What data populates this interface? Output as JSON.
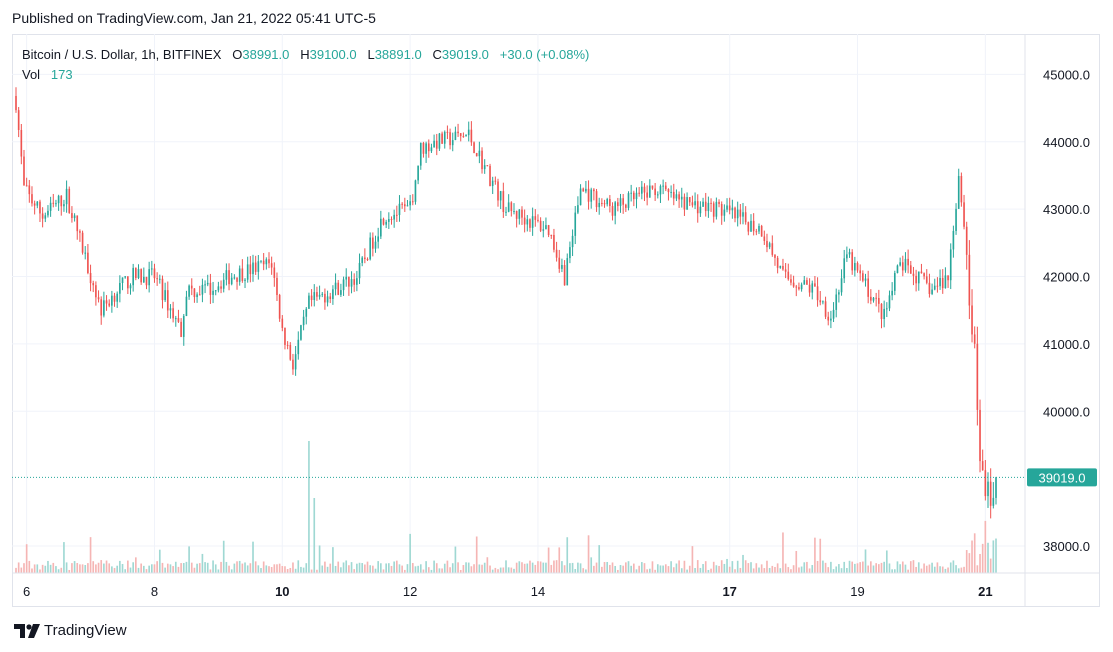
{
  "published": "Published on TradingView.com, Jan 21, 2022 05:41 UTC-5",
  "legend": {
    "symbol": "Bitcoin / U.S. Dollar, 1h, BITFINEX",
    "o_label": "O",
    "o_value": "38991.0",
    "h_label": "H",
    "h_value": "39100.0",
    "l_label": "L",
    "l_value": "38891.0",
    "c_label": "C",
    "c_value": "39019.0",
    "change": "+30.0 (+0.08%)",
    "vol_label": "Vol",
    "vol_value": "173"
  },
  "logo_text": "TradingView",
  "colors": {
    "up": "#26a69a",
    "down": "#ef5350",
    "vol_up": "#9fd8d3",
    "vol_down": "#f5b5b4",
    "grid": "#f0f3fa"
  },
  "chart_data": {
    "type": "candlestick",
    "y_ticks": [
      "45000.0",
      "44000.0",
      "43000.0",
      "42000.0",
      "41000.0",
      "40000.0",
      "38000.0"
    ],
    "ylim": [
      37600,
      45600
    ],
    "x_ticks": [
      {
        "label": "6",
        "bar": 4,
        "bold": false
      },
      {
        "label": "8",
        "bar": 52,
        "bold": false
      },
      {
        "label": "10",
        "bar": 100,
        "bold": true
      },
      {
        "label": "12",
        "bar": 148,
        "bold": false
      },
      {
        "label": "14",
        "bar": 196,
        "bold": false
      },
      {
        "label": "17",
        "bar": 268,
        "bold": true
      },
      {
        "label": "19",
        "bar": 316,
        "bold": false
      },
      {
        "label": "21",
        "bar": 364,
        "bold": true
      }
    ],
    "last_price": "39019.0",
    "anchors": [
      [
        0,
        44600
      ],
      [
        3,
        43300
      ],
      [
        10,
        42900
      ],
      [
        19,
        43200
      ],
      [
        32,
        41500
      ],
      [
        38,
        41800
      ],
      [
        44,
        42000
      ],
      [
        52,
        42000
      ],
      [
        62,
        41200
      ],
      [
        64,
        41800
      ],
      [
        72,
        41800
      ],
      [
        80,
        42000
      ],
      [
        96,
        42200
      ],
      [
        100,
        41200
      ],
      [
        104,
        40700
      ],
      [
        110,
        41600
      ],
      [
        128,
        42000
      ],
      [
        138,
        42900
      ],
      [
        148,
        43000
      ],
      [
        152,
        43900
      ],
      [
        158,
        44000
      ],
      [
        170,
        44100
      ],
      [
        184,
        43000
      ],
      [
        200,
        42700
      ],
      [
        206,
        42000
      ],
      [
        212,
        43300
      ],
      [
        224,
        43000
      ],
      [
        240,
        43300
      ],
      [
        250,
        43100
      ],
      [
        264,
        43000
      ],
      [
        280,
        42700
      ],
      [
        288,
        42000
      ],
      [
        300,
        41800
      ],
      [
        306,
        41400
      ],
      [
        312,
        42300
      ],
      [
        320,
        41800
      ],
      [
        326,
        41400
      ],
      [
        332,
        42200
      ],
      [
        344,
        41800
      ],
      [
        350,
        42000
      ],
      [
        354,
        43500
      ],
      [
        356,
        42800
      ],
      [
        360,
        40800
      ],
      [
        362,
        39200
      ],
      [
        366,
        38700
      ],
      [
        368,
        39019
      ]
    ],
    "total_bars": 369,
    "note_volume_spike_bar": 110
  }
}
